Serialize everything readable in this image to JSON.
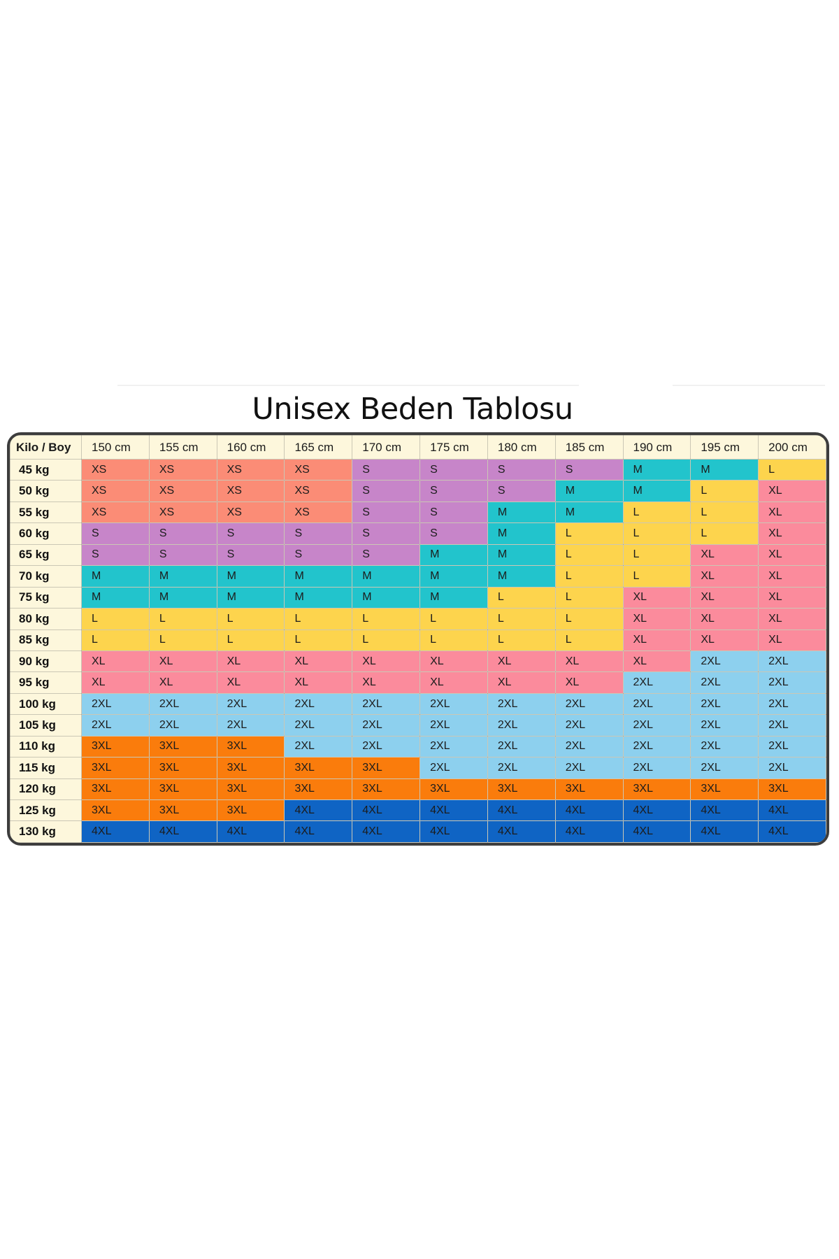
{
  "title": "Unisex Beden Tablosu",
  "table": {
    "corner_label": "Kilo / Boy",
    "columns": [
      "150 cm",
      "155 cm",
      "160 cm",
      "165 cm",
      "170 cm",
      "175 cm",
      "180 cm",
      "185 cm",
      "190 cm",
      "195 cm",
      "200 cm"
    ],
    "rows": [
      {
        "label": "45 kg",
        "cells": [
          "XS",
          "XS",
          "XS",
          "XS",
          "S",
          "S",
          "S",
          "S",
          "M",
          "M",
          "L"
        ]
      },
      {
        "label": "50 kg",
        "cells": [
          "XS",
          "XS",
          "XS",
          "XS",
          "S",
          "S",
          "S",
          "M",
          "M",
          "L",
          "XL"
        ]
      },
      {
        "label": "55 kg",
        "cells": [
          "XS",
          "XS",
          "XS",
          "XS",
          "S",
          "S",
          "M",
          "M",
          "L",
          "L",
          "XL"
        ]
      },
      {
        "label": "60 kg",
        "cells": [
          "S",
          "S",
          "S",
          "S",
          "S",
          "S",
          "M",
          "L",
          "L",
          "L",
          "XL"
        ]
      },
      {
        "label": "65 kg",
        "cells": [
          "S",
          "S",
          "S",
          "S",
          "S",
          "M",
          "M",
          "L",
          "L",
          "XL",
          "XL"
        ]
      },
      {
        "label": "70 kg",
        "cells": [
          "M",
          "M",
          "M",
          "M",
          "M",
          "M",
          "M",
          "L",
          "L",
          "XL",
          "XL"
        ]
      },
      {
        "label": "75 kg",
        "cells": [
          "M",
          "M",
          "M",
          "M",
          "M",
          "M",
          "L",
          "L",
          "XL",
          "XL",
          "XL"
        ]
      },
      {
        "label": "80 kg",
        "cells": [
          "L",
          "L",
          "L",
          "L",
          "L",
          "L",
          "L",
          "L",
          "XL",
          "XL",
          "XL"
        ]
      },
      {
        "label": "85 kg",
        "cells": [
          "L",
          "L",
          "L",
          "L",
          "L",
          "L",
          "L",
          "L",
          "XL",
          "XL",
          "XL"
        ]
      },
      {
        "label": "90 kg",
        "cells": [
          "XL",
          "XL",
          "XL",
          "XL",
          "XL",
          "XL",
          "XL",
          "XL",
          "XL",
          "2XL",
          "2XL"
        ]
      },
      {
        "label": "95 kg",
        "cells": [
          "XL",
          "XL",
          "XL",
          "XL",
          "XL",
          "XL",
          "XL",
          "XL",
          "2XL",
          "2XL",
          "2XL"
        ]
      },
      {
        "label": "100 kg",
        "cells": [
          "2XL",
          "2XL",
          "2XL",
          "2XL",
          "2XL",
          "2XL",
          "2XL",
          "2XL",
          "2XL",
          "2XL",
          "2XL"
        ]
      },
      {
        "label": "105 kg",
        "cells": [
          "2XL",
          "2XL",
          "2XL",
          "2XL",
          "2XL",
          "2XL",
          "2XL",
          "2XL",
          "2XL",
          "2XL",
          "2XL"
        ]
      },
      {
        "label": "110 kg",
        "cells": [
          "3XL",
          "3XL",
          "3XL",
          "2XL",
          "2XL",
          "2XL",
          "2XL",
          "2XL",
          "2XL",
          "2XL",
          "2XL"
        ]
      },
      {
        "label": "115 kg",
        "cells": [
          "3XL",
          "3XL",
          "3XL",
          "3XL",
          "3XL",
          "2XL",
          "2XL",
          "2XL",
          "2XL",
          "2XL",
          "2XL"
        ]
      },
      {
        "label": "120 kg",
        "cells": [
          "3XL",
          "3XL",
          "3XL",
          "3XL",
          "3XL",
          "3XL",
          "3XL",
          "3XL",
          "3XL",
          "3XL",
          "3XL"
        ]
      },
      {
        "label": "125 kg",
        "cells": [
          "3XL",
          "3XL",
          "3XL",
          "4XL",
          "4XL",
          "4XL",
          "4XL",
          "4XL",
          "4XL",
          "4XL",
          "4XL"
        ]
      },
      {
        "label": "130 kg",
        "cells": [
          "4XL",
          "4XL",
          "4XL",
          "4XL",
          "4XL",
          "4XL",
          "4XL",
          "4XL",
          "4XL",
          "4XL",
          "4XL"
        ]
      }
    ]
  },
  "size_colors": {
    "XS": "#fb8c76",
    "S": "#c785c9",
    "M": "#22c4cc",
    "L": "#fdd44d",
    "XL": "#fb8b9c",
    "2XL": "#8dd0ee",
    "3XL": "#fa7c0c",
    "4XL": "#0f64c4"
  },
  "header_color": "#fdf7dc"
}
